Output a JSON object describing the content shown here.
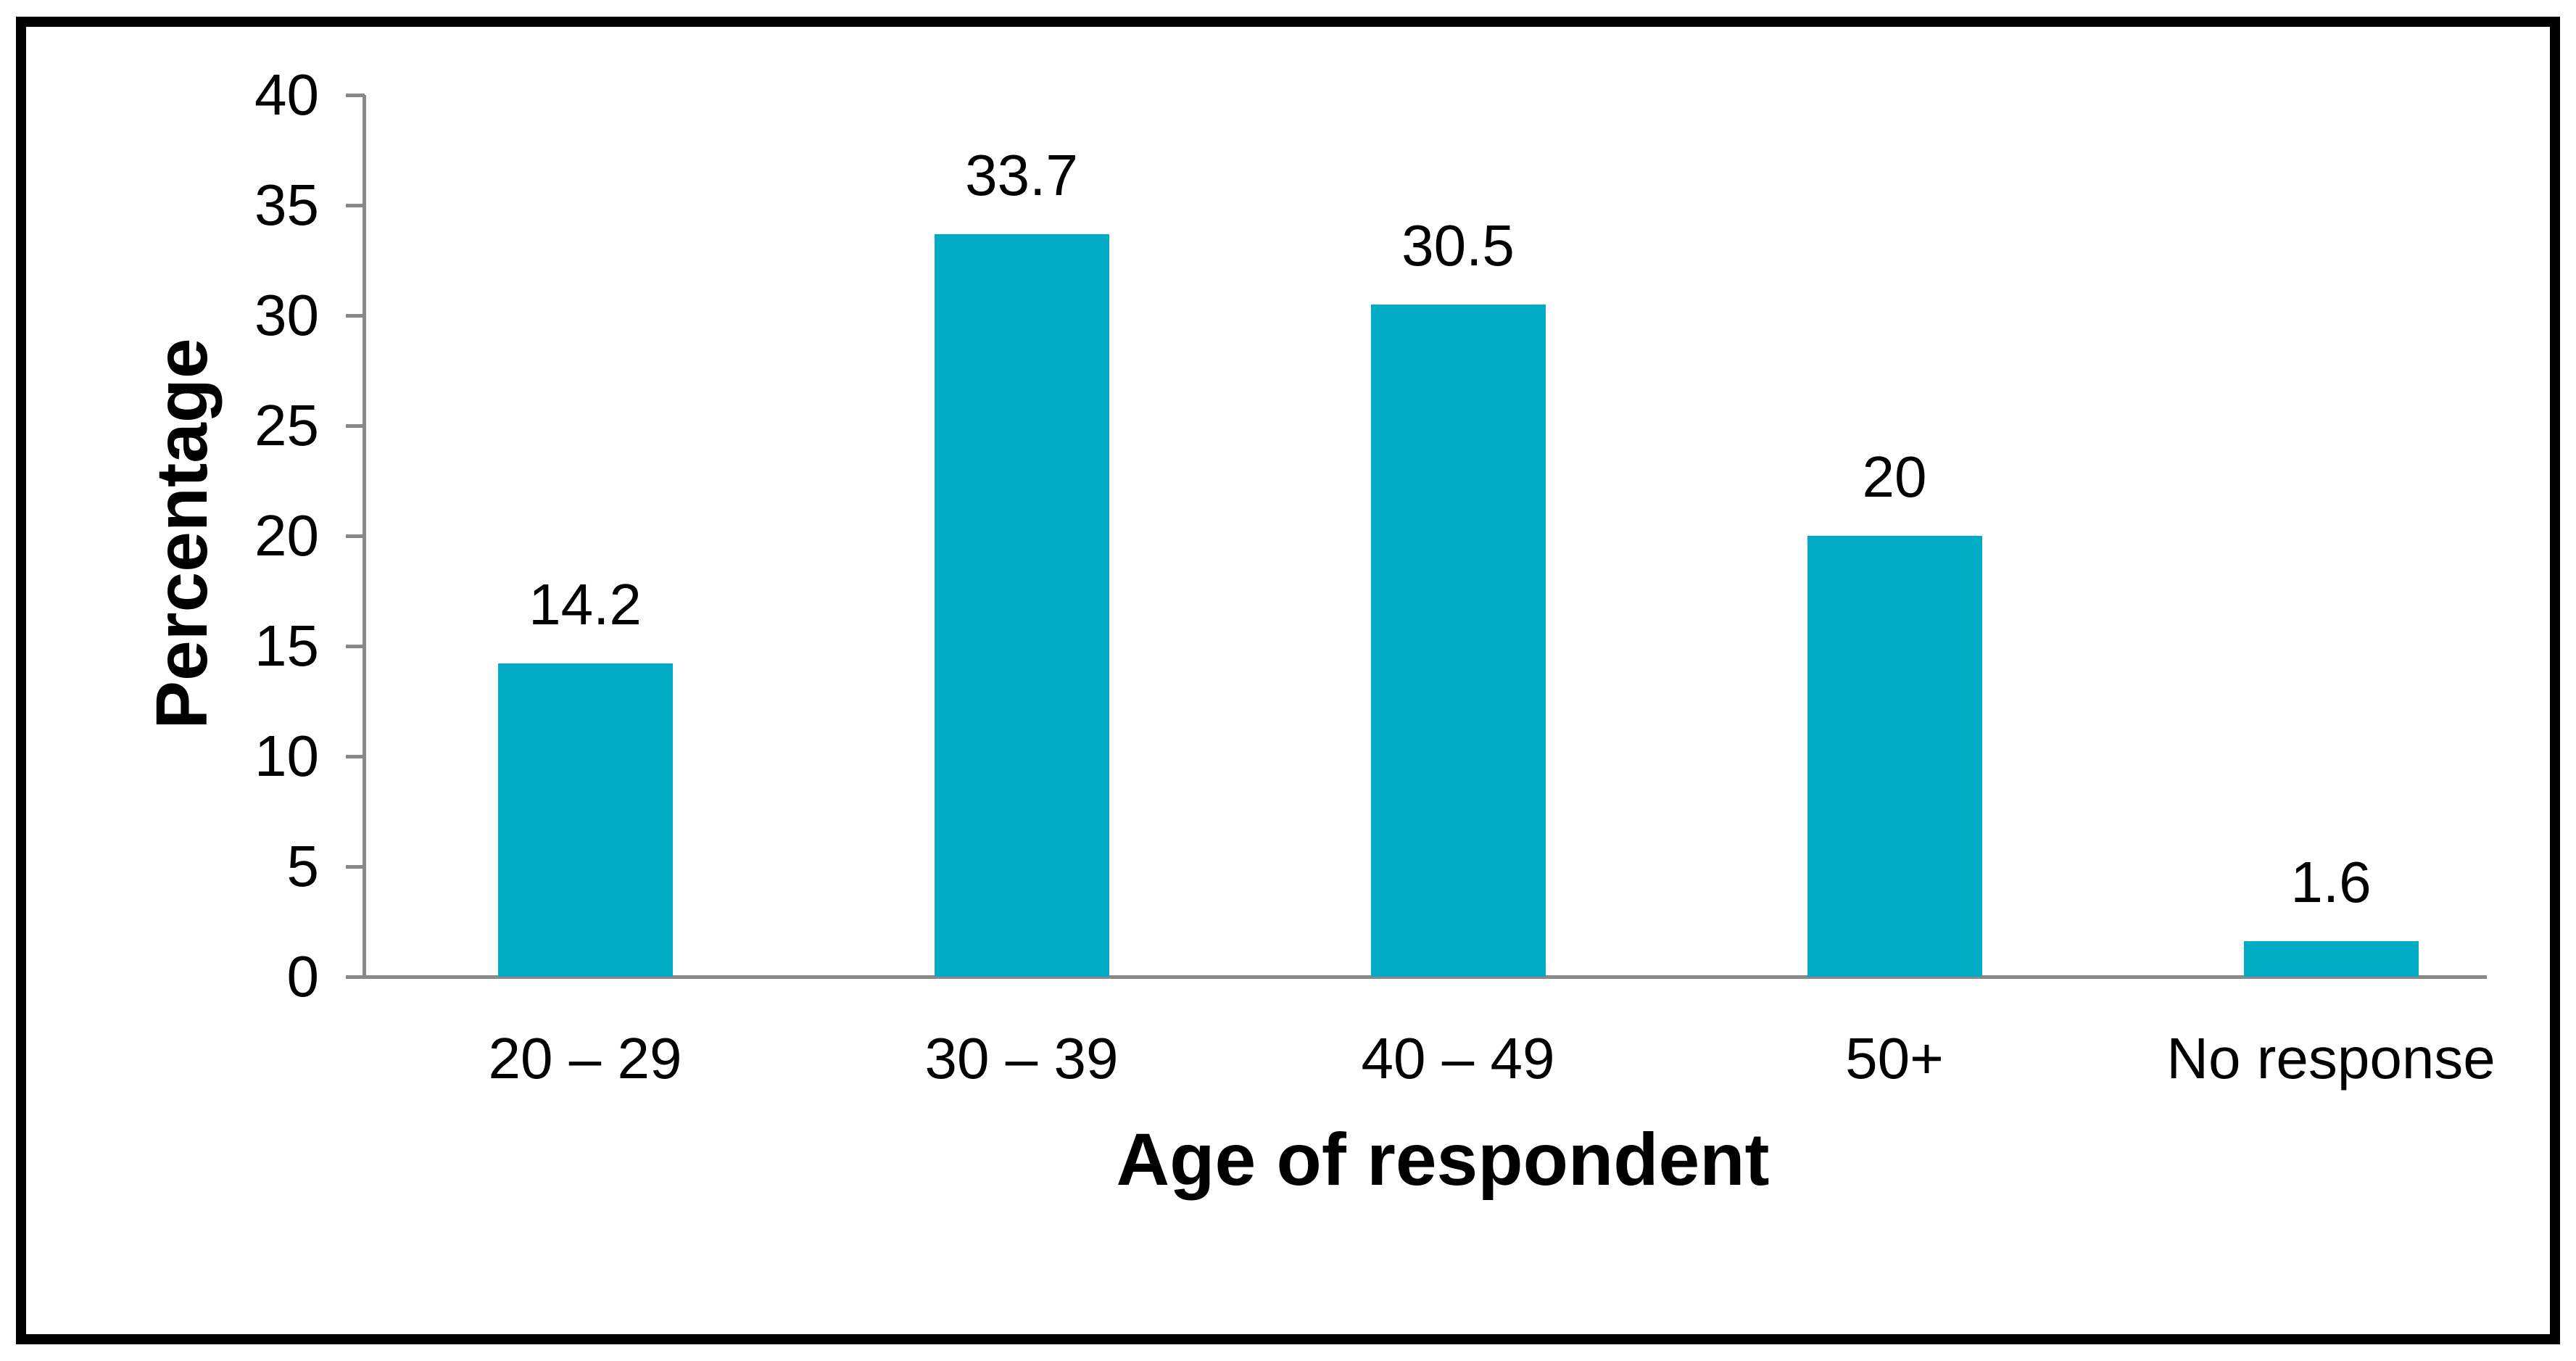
{
  "chart_data": {
    "type": "bar",
    "title": "",
    "categories": [
      "20 – 29",
      "30 – 39",
      "40 – 49",
      "50+",
      "No response"
    ],
    "values": [
      14.2,
      33.7,
      30.5,
      20,
      1.6
    ],
    "value_labels": [
      "14.2",
      "33.7",
      "30.5",
      "20",
      "1.6"
    ],
    "xlabel": "Age of respondent",
    "ylabel": "Percentage",
    "ylim": [
      0,
      40
    ],
    "yticks": [
      0,
      5,
      10,
      15,
      20,
      25,
      30,
      35,
      40
    ],
    "grid": false,
    "legend": "none",
    "data_labels": "above bars",
    "bar_color": "#00ABC3",
    "axis_color": "#898989",
    "text_color": "#000000",
    "frame_color": "#000000"
  }
}
